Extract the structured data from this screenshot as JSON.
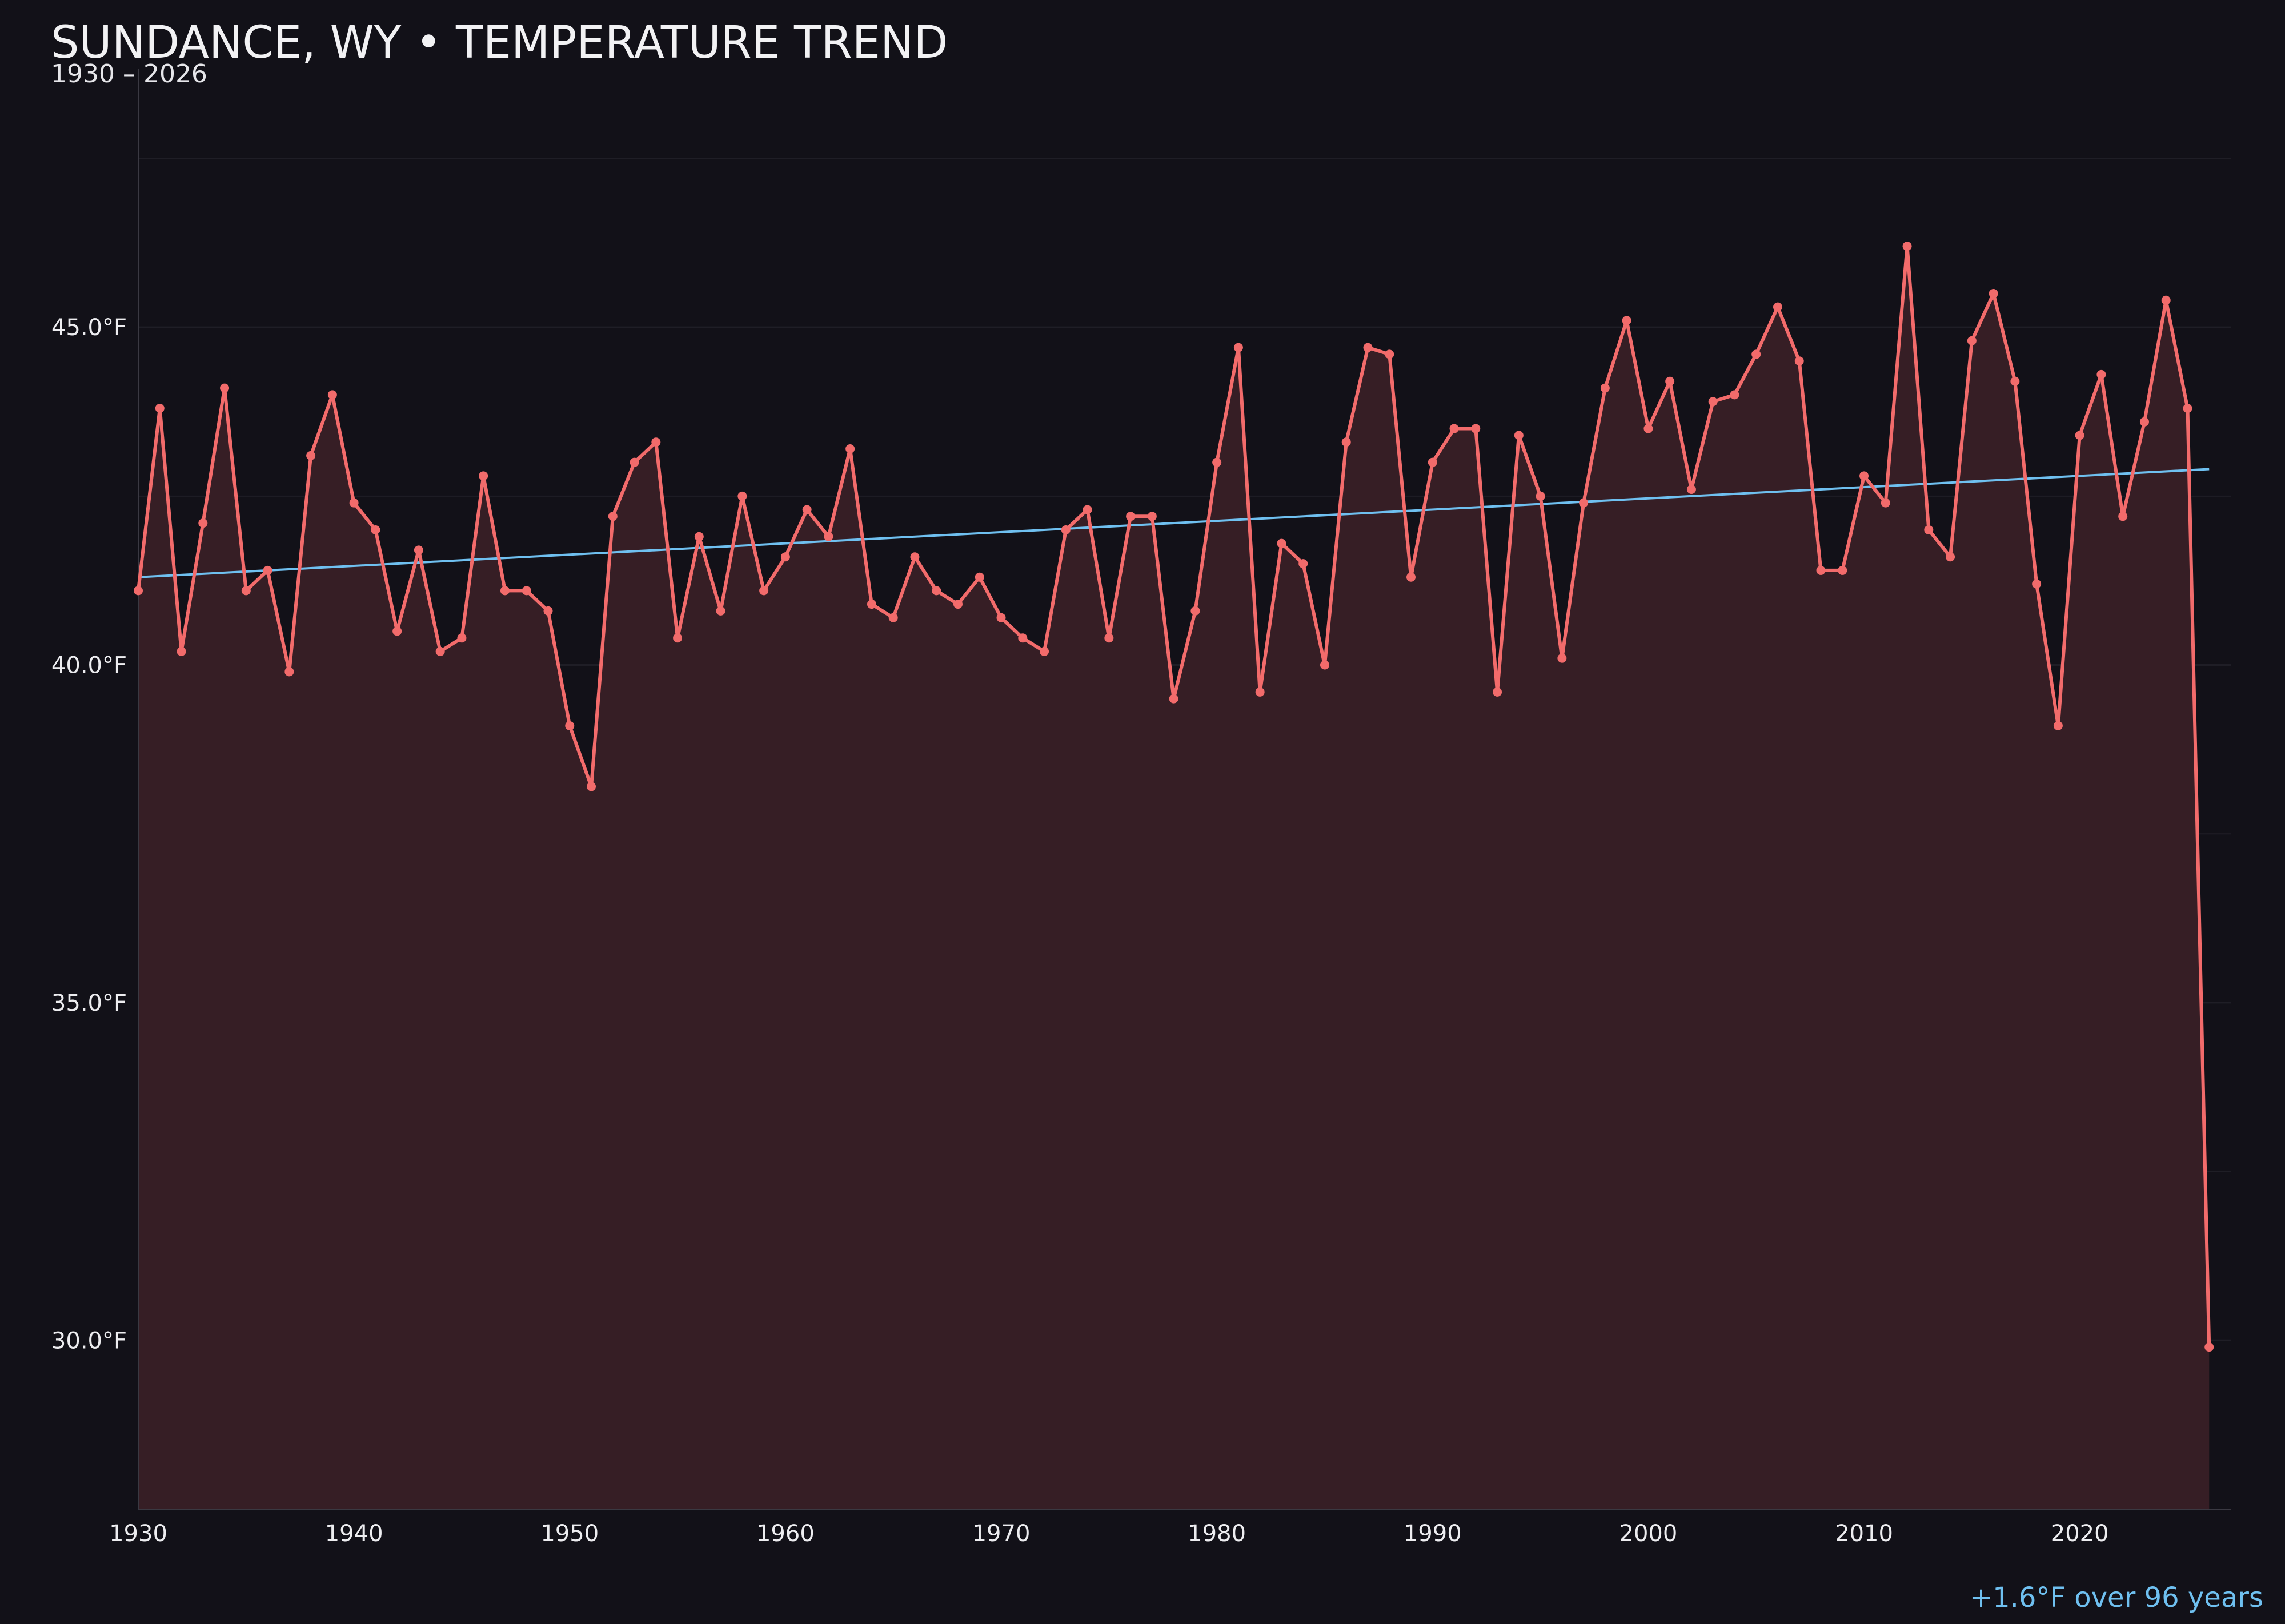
{
  "chart_data": {
    "type": "line",
    "title": "SUNDANCE, WY • TEMPERATURE TREND",
    "subtitle": "1930 – 2026",
    "footnote": "+1.6°F over 96 years",
    "xlabel": "",
    "ylabel": "",
    "x_ticks": [
      1930,
      1940,
      1950,
      1960,
      1970,
      1980,
      1990,
      2000,
      2010,
      2020
    ],
    "y_ticks": [
      "30.0°F",
      "35.0°F",
      "40.0°F",
      "45.0°F"
    ],
    "y_tick_values": [
      30,
      35,
      40,
      45
    ],
    "xlim": [
      1930,
      2027
    ],
    "ylim": [
      27.5,
      49.0
    ],
    "grid": true,
    "colors": {
      "background": "#121118",
      "line": "#f26b6b",
      "fill": "#361e25",
      "trend": "#6fc0f0",
      "grid": "#1f1e26",
      "axis": "#3a3942"
    },
    "series": [
      {
        "x": [
          1930,
          1931,
          1932,
          1933,
          1934,
          1935,
          1936,
          1937,
          1938,
          1939,
          1940,
          1941,
          1942,
          1943,
          1944,
          1945,
          1946,
          1947,
          1948,
          1949,
          1950,
          1951,
          1952,
          1953,
          1954,
          1955,
          1956,
          1957,
          1958,
          1959,
          1960,
          1961,
          1962,
          1963,
          1964,
          1965,
          1966,
          1967,
          1968,
          1969,
          1970,
          1971,
          1972,
          1973,
          1974,
          1975,
          1976,
          1977,
          1978,
          1979,
          1980,
          1981,
          1982,
          1983,
          1984,
          1985,
          1986,
          1987,
          1988,
          1989,
          1990,
          1991,
          1992,
          1993,
          1994,
          1995,
          1996,
          1997,
          1998,
          1999,
          2000,
          2001,
          2002,
          2003,
          2004,
          2005,
          2006,
          2007,
          2008,
          2009,
          2010,
          2011,
          2012,
          2013,
          2014,
          2015,
          2016,
          2017,
          2018,
          2019,
          2020,
          2021,
          2022,
          2023,
          2024,
          2025,
          2026
        ],
        "values": [
          41.1,
          43.8,
          40.2,
          42.1,
          44.1,
          41.1,
          41.4,
          39.9,
          43.1,
          44.0,
          42.4,
          42.0,
          40.5,
          41.7,
          40.2,
          40.4,
          42.8,
          41.1,
          41.1,
          40.8,
          39.1,
          38.2,
          42.2,
          43.0,
          43.3,
          40.4,
          41.9,
          40.8,
          42.5,
          41.1,
          41.6,
          42.3,
          41.9,
          43.2,
          40.9,
          40.7,
          41.6,
          41.1,
          40.9,
          41.3,
          40.7,
          40.4,
          40.2,
          42.0,
          42.3,
          40.4,
          42.2,
          42.2,
          39.5,
          40.8,
          43.0,
          44.7,
          39.6,
          41.8,
          41.5,
          40.0,
          43.3,
          44.7,
          44.6,
          41.3,
          43.0,
          43.5,
          43.5,
          39.6,
          43.4,
          42.5,
          40.1,
          42.4,
          44.1,
          45.1,
          43.5,
          44.2,
          42.6,
          43.9,
          44.0,
          44.6,
          45.3,
          44.5,
          41.4,
          41.4,
          42.8,
          42.4,
          46.2,
          42.0,
          41.6,
          44.8,
          45.5,
          44.2,
          41.2,
          39.1,
          43.4,
          44.3,
          42.2,
          43.6,
          45.4,
          43.8,
          29.9
        ]
      }
    ],
    "trend": {
      "x": [
        1930,
        2026
      ],
      "y": [
        41.3,
        42.9
      ]
    }
  }
}
